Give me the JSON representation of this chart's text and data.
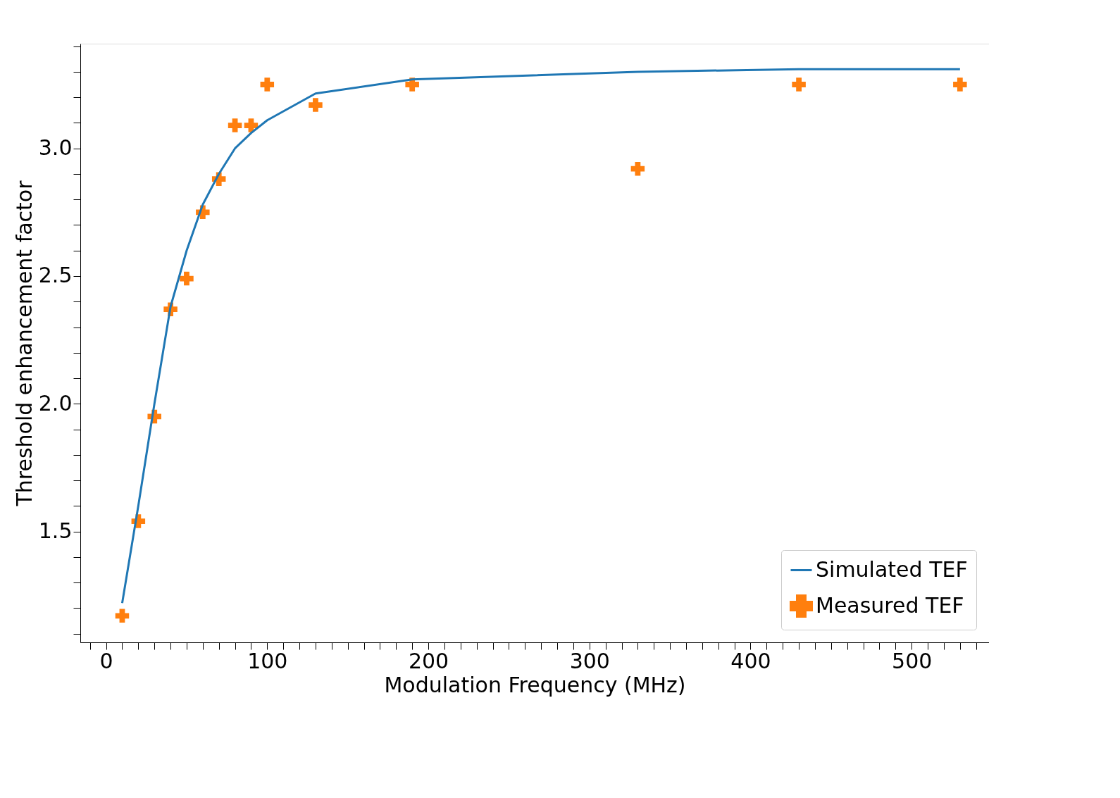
{
  "chart_data": {
    "type": "line",
    "xlabel": "Modulation Frequency (MHz)",
    "ylabel": "Threshold enhancement factor",
    "xlim": [
      -16,
      548
    ],
    "ylim": [
      1.066,
      3.41
    ],
    "xticks": [
      {
        "value": -10,
        "label": null
      },
      0,
      {
        "value": 10,
        "label": null
      },
      {
        "value": 20,
        "label": null
      },
      {
        "value": 30,
        "label": null
      },
      {
        "value": 40,
        "label": null
      },
      {
        "value": 50,
        "label": null
      },
      {
        "value": 60,
        "label": null
      },
      {
        "value": 70,
        "label": null
      },
      {
        "value": 80,
        "label": null
      },
      {
        "value": 90,
        "label": null
      },
      100,
      {
        "value": 110,
        "label": null
      },
      {
        "value": 120,
        "label": null
      },
      {
        "value": 130,
        "label": null
      },
      {
        "value": 140,
        "label": null
      },
      {
        "value": 150,
        "label": null
      },
      {
        "value": 160,
        "label": null
      },
      {
        "value": 170,
        "label": null
      },
      {
        "value": 180,
        "label": null
      },
      {
        "value": 190,
        "label": null
      },
      200,
      {
        "value": 210,
        "label": null
      },
      {
        "value": 220,
        "label": null
      },
      {
        "value": 230,
        "label": null
      },
      {
        "value": 240,
        "label": null
      },
      {
        "value": 250,
        "label": null
      },
      {
        "value": 260,
        "label": null
      },
      {
        "value": 270,
        "label": null
      },
      {
        "value": 280,
        "label": null
      },
      {
        "value": 290,
        "label": null
      },
      300,
      {
        "value": 310,
        "label": null
      },
      {
        "value": 320,
        "label": null
      },
      {
        "value": 330,
        "label": null
      },
      {
        "value": 340,
        "label": null
      },
      {
        "value": 350,
        "label": null
      },
      {
        "value": 360,
        "label": null
      },
      {
        "value": 370,
        "label": null
      },
      {
        "value": 380,
        "label": null
      },
      {
        "value": 390,
        "label": null
      },
      400,
      {
        "value": 410,
        "label": null
      },
      {
        "value": 420,
        "label": null
      },
      {
        "value": 430,
        "label": null
      },
      {
        "value": 440,
        "label": null
      },
      {
        "value": 450,
        "label": null
      },
      {
        "value": 460,
        "label": null
      },
      {
        "value": 470,
        "label": null
      },
      {
        "value": 480,
        "label": null
      },
      {
        "value": 490,
        "label": null
      },
      500,
      {
        "value": 510,
        "label": null
      },
      {
        "value": 520,
        "label": null
      },
      {
        "value": 530,
        "label": null
      },
      {
        "value": 540,
        "label": null
      }
    ],
    "yticks": [
      {
        "value": 1.1,
        "label": null
      },
      {
        "value": 1.2,
        "label": null
      },
      {
        "value": 1.3,
        "label": null
      },
      {
        "value": 1.4,
        "label": null
      },
      {
        "value": 1.5,
        "label": "1.5"
      },
      {
        "value": 1.6,
        "label": null
      },
      {
        "value": 1.7,
        "label": null
      },
      {
        "value": 1.8,
        "label": null
      },
      {
        "value": 1.9,
        "label": null
      },
      {
        "value": 2.0,
        "label": "2.0"
      },
      {
        "value": 2.1,
        "label": null
      },
      {
        "value": 2.2,
        "label": null
      },
      {
        "value": 2.3,
        "label": null
      },
      {
        "value": 2.4,
        "label": null
      },
      {
        "value": 2.5,
        "label": "2.5"
      },
      {
        "value": 2.6,
        "label": null
      },
      {
        "value": 2.7,
        "label": null
      },
      {
        "value": 2.8,
        "label": null
      },
      {
        "value": 2.9,
        "label": null
      },
      {
        "value": 3.0,
        "label": "3.0"
      },
      {
        "value": 3.1,
        "label": null
      },
      {
        "value": 3.2,
        "label": null
      },
      {
        "value": 3.3,
        "label": null
      },
      {
        "value": 3.4,
        "label": null
      }
    ],
    "grid": false,
    "legend": "bottom right",
    "series": [
      {
        "name": "Simulated TEF",
        "type": "line",
        "color": "#1f77b4",
        "marker": "none",
        "x": [
          10,
          20,
          30,
          40,
          50,
          60,
          70,
          80,
          90,
          100,
          130,
          190,
          330,
          430,
          530
        ],
        "values": [
          1.22,
          1.6,
          2.0,
          2.38,
          2.6,
          2.78,
          2.9,
          3.0,
          3.06,
          3.11,
          3.215,
          3.27,
          3.3,
          3.31,
          3.31
        ]
      },
      {
        "name": "Measured TEF",
        "type": "scatter",
        "color": "#ff7f0e",
        "marker": "cross",
        "x": [
          10,
          20,
          30,
          40,
          50,
          60,
          70,
          80,
          90,
          100,
          130,
          190,
          330,
          430,
          530
        ],
        "values": [
          1.17,
          1.54,
          1.95,
          2.37,
          2.49,
          2.75,
          2.88,
          3.09,
          3.09,
          3.25,
          3.17,
          3.25,
          2.92,
          3.25,
          3.25
        ]
      }
    ]
  }
}
